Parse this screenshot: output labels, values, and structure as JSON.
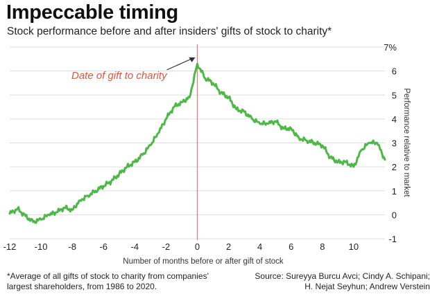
{
  "header": {
    "title": "Impeccable timing",
    "subtitle": "Stock performance before and after insiders' gifts of stock to charity*"
  },
  "footer": {
    "note_line1": "*Average of all gifts of stock to charity from companies'",
    "note_line2": "largest shareholders, from 1986 to 2020.",
    "source_line1": "Source: Sureyya Burcu Avci; Cindy A. Schipani;",
    "source_line2": "H. Nejat Seyhun; Andrew Verstein"
  },
  "colors": {
    "line": "#4db848",
    "marker_line": "#e07a6a",
    "annotation_text": "#e0533d",
    "grid": "#dddddd",
    "arrow": "#333333"
  },
  "chart_data": {
    "type": "line",
    "title": "Impeccable timing",
    "subtitle": "Stock performance before and after insiders' gifts of stock to charity*",
    "xlabel": "Number of months before or after gift of stock",
    "ylabel": "Performance relative to market",
    "xlim": [
      -12,
      12
    ],
    "ylim": [
      -1,
      7
    ],
    "x_ticks": [
      -12,
      -10,
      -8,
      -6,
      -4,
      -2,
      0,
      2,
      4,
      6,
      8,
      10
    ],
    "x_tick_labels": [
      "-12",
      "-10",
      "-8",
      "-6",
      "-4",
      "-2",
      "0",
      "2",
      "4",
      "6",
      "8",
      "10"
    ],
    "y_ticks": [
      -1,
      0,
      1,
      2,
      3,
      4,
      5,
      6,
      7
    ],
    "y_tick_labels": [
      "-1",
      "0",
      "1",
      "2",
      "3",
      "4",
      "5",
      "6",
      "7%"
    ],
    "grid": "horizontal",
    "annotations": [
      {
        "text": "Date of gift to charity",
        "x": 0
      }
    ],
    "series": [
      {
        "x": [
          -12,
          -11.5,
          -11,
          -10.5,
          -10,
          -9.5,
          -9,
          -8.5,
          -8,
          -7.5,
          -7,
          -6.5,
          -6,
          -5.5,
          -5,
          -4.5,
          -4,
          -3.5,
          -3,
          -2.5,
          -2,
          -1.5,
          -1,
          -0.5,
          0,
          0.5,
          1,
          1.5,
          2,
          2.5,
          3,
          3.5,
          4,
          4.5,
          5,
          5.5,
          6,
          6.5,
          7,
          7.5,
          8,
          8.5,
          9,
          9.5,
          10,
          10.5,
          11,
          11.5,
          12
        ],
        "values": [
          0.05,
          0.25,
          -0.05,
          -0.3,
          -0.2,
          0.0,
          0.1,
          0.3,
          0.2,
          0.6,
          0.8,
          1.0,
          1.2,
          1.4,
          1.7,
          2.0,
          2.2,
          2.5,
          2.9,
          3.4,
          4.0,
          4.5,
          4.7,
          4.9,
          6.3,
          5.7,
          5.5,
          5.1,
          4.9,
          4.4,
          4.3,
          4.0,
          3.8,
          3.8,
          3.9,
          3.6,
          3.6,
          3.2,
          3.1,
          3.0,
          2.9,
          2.4,
          2.2,
          2.2,
          2.0,
          2.7,
          3.0,
          3.0,
          2.3
        ]
      }
    ]
  }
}
